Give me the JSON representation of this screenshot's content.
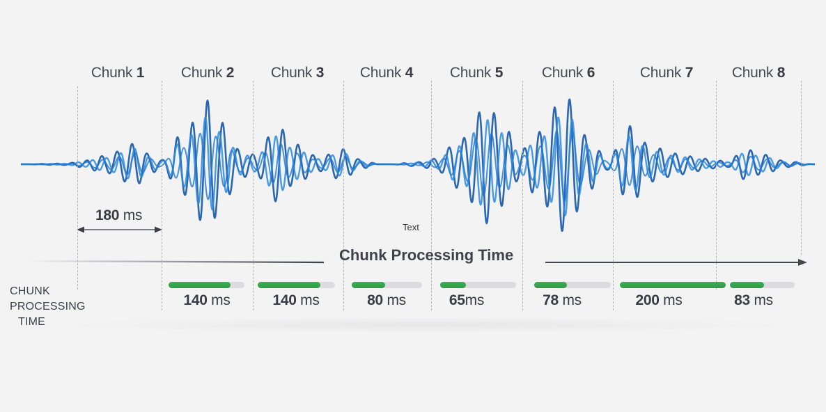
{
  "diagram": {
    "axis_title": "Chunk Processing Time",
    "side_label_lines": [
      "CHUNK",
      "PROCESSING",
      "TIME"
    ],
    "stray_text": "Text",
    "chunk_duration_label": {
      "value": "180",
      "unit": "ms"
    },
    "colors": {
      "background": "#f3f3f4",
      "wave": "#1f78d1",
      "wave_dark": "#1557a8",
      "bar_fill": "#34a350",
      "bar_track": "#dcdcde",
      "text": "#3d3f48",
      "divider": "#b3b3b8"
    },
    "chunks": [
      {
        "prefix": "Chunk",
        "number": "1",
        "time_value": "",
        "time_unit": ""
      },
      {
        "prefix": "Chunk",
        "number": "2",
        "time_value": "140",
        "time_unit": "ms"
      },
      {
        "prefix": "Chunk",
        "number": "3",
        "time_value": "140",
        "time_unit": "ms"
      },
      {
        "prefix": "Chunk",
        "number": "4",
        "time_value": "80",
        "time_unit": "ms"
      },
      {
        "prefix": "Chunk",
        "number": "5",
        "time_value": "65",
        "time_unit": "ms"
      },
      {
        "prefix": "Chunk",
        "number": "6",
        "time_value": "78",
        "time_unit": "ms"
      },
      {
        "prefix": "Chunk",
        "number": "7",
        "time_value": "200",
        "time_unit": "ms"
      },
      {
        "prefix": "Chunk",
        "number": "8",
        "time_value": "83",
        "time_unit": "ms"
      }
    ]
  },
  "chart_data": {
    "type": "bar",
    "title": "Chunk Processing Time",
    "categories": [
      "Chunk 1",
      "Chunk 2",
      "Chunk 3",
      "Chunk 4",
      "Chunk 5",
      "Chunk 6",
      "Chunk 7",
      "Chunk 8"
    ],
    "values": [
      null,
      140,
      140,
      80,
      65,
      78,
      200,
      83
    ],
    "unit": "ms",
    "chunk_duration_ms": 180,
    "xlabel": "Chunk Processing Time",
    "ylabel": "CHUNK PROCESSING TIME"
  }
}
